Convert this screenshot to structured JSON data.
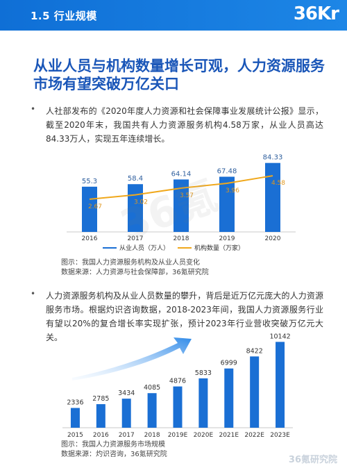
{
  "header": {
    "section": "1.5 行业规模",
    "logo": "36Kr"
  },
  "title": "从业人员与机构数量增长可观，人力资源服务市场有望突破万亿关口",
  "paragraphs": [
    "人社部发布的《2020年度人力资源和社会保障事业发展统计公报》显示，截至2020年末，我国共有人力资源服务机构4.58万家，从业人员高达84.33万人，实现五年连续增长。",
    "人力资源服务机构及从业人员数量的攀升，背后是近万亿元庞大的人力资源服务市场。根据灼识咨询数据，2018-2023年间，我国人力资源服务行业有望以20%的复合增长率实现扩张，预计2023年行业营收突破万亿元大关。"
  ],
  "bullet": "•",
  "captions": {
    "chart1_title": "图示：我国人力资源服务机构及从业人员变化",
    "chart1_source": "数据来源：人力资源与社会保障部，36氪研究院",
    "chart2_title": "图示：我国人力资源服务市场规模",
    "chart2_source": "数据来源：灼识咨询，36氪研究院"
  },
  "watermark": "36氪",
  "footer_logo": "36氪研究院",
  "colors": {
    "bar": "#1a6fd4",
    "bar_top": "#1565c8",
    "line": "#f0a81c",
    "header": "#1677e0",
    "title": "#1a56b8"
  },
  "chart_data": [
    {
      "type": "bar",
      "categories": [
        "2016",
        "2017",
        "2018",
        "2019",
        "2020"
      ],
      "series": [
        {
          "name": "从业人员（万人）",
          "values": [
            55.3,
            58.4,
            64.14,
            67.48,
            84.33
          ],
          "labels": [
            "55.3",
            "58.4",
            "64.14",
            "67.48",
            "84.33"
          ]
        },
        {
          "name": "机构数量（万家）",
          "values": [
            2.67,
            3.02,
            3.57,
            3.96,
            4.58
          ],
          "labels": [
            "2.67",
            "3.02",
            "3.57",
            "3.96",
            "4.58"
          ],
          "render": "line",
          "axis": "secondary"
        }
      ],
      "ylim": [
        0,
        90
      ],
      "y2lim": [
        0,
        6
      ],
      "legend": "bottom"
    },
    {
      "type": "bar",
      "categories": [
        "2015",
        "2016",
        "2017",
        "2018",
        "2019E",
        "2020E",
        "2021E",
        "2022E",
        "2023E"
      ],
      "values": [
        2336,
        2785,
        3434,
        4085,
        4876,
        5833,
        6999,
        8422,
        10142
      ],
      "labels": [
        "2336",
        "2785",
        "3434",
        "4085",
        "4876",
        "5833",
        "6999",
        "8422",
        "10142"
      ],
      "ylim": [
        0,
        10500
      ],
      "annotation": "trend-arrow"
    }
  ]
}
